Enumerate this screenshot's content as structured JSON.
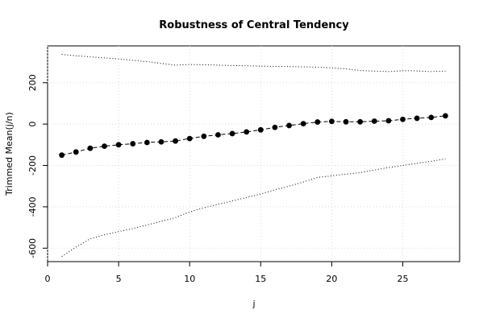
{
  "chart_data": {
    "type": "line",
    "title": "Robustness of Central Tendency",
    "xlabel": "j",
    "ylabel": "Trimmed Mean(j/n)",
    "xlim": [
      0,
      29
    ],
    "ylim": [
      -665,
      378
    ],
    "x_ticks": [
      0,
      5,
      10,
      15,
      20,
      25
    ],
    "y_ticks": [
      -600,
      -400,
      -200,
      0,
      200
    ],
    "grid": true,
    "x": [
      1,
      2,
      3,
      4,
      5,
      6,
      7,
      8,
      9,
      10,
      11,
      12,
      13,
      14,
      15,
      16,
      17,
      18,
      19,
      20,
      21,
      22,
      23,
      24,
      25,
      26,
      27,
      28
    ],
    "series": [
      {
        "values": [
          -150,
          -135,
          -117,
          -107,
          -100,
          -95,
          -89,
          -86,
          -82,
          -70,
          -59,
          -52,
          -46,
          -38,
          -28,
          -16,
          -7,
          2,
          10,
          13,
          11,
          11,
          14,
          16,
          23,
          28,
          32,
          40
        ],
        "style": "points-dashed",
        "color": "#000000"
      },
      {
        "values": [
          337,
          330,
          325,
          320,
          315,
          308,
          302,
          293,
          285,
          288,
          287,
          285,
          283,
          282,
          280,
          279,
          278,
          277,
          275,
          272,
          267,
          259,
          256,
          254,
          258,
          257,
          254,
          256
        ],
        "style": "dotted",
        "color": "#000000"
      },
      {
        "values": [
          -640,
          -595,
          -555,
          -535,
          -520,
          -505,
          -488,
          -470,
          -452,
          -425,
          -405,
          -388,
          -372,
          -355,
          -338,
          -318,
          -300,
          -280,
          -258,
          -250,
          -242,
          -235,
          -222,
          -210,
          -200,
          -190,
          -180,
          -168
        ],
        "style": "dotted",
        "color": "#000000"
      }
    ]
  }
}
